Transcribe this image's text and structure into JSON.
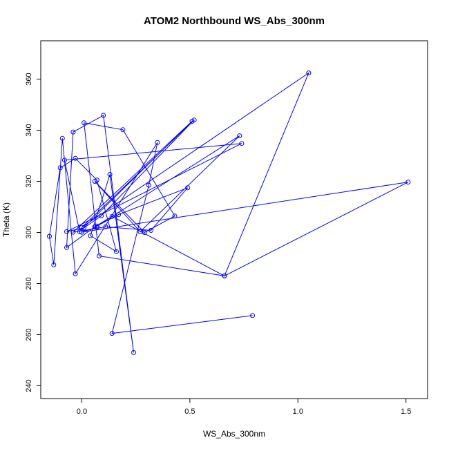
{
  "chart_data": {
    "type": "line",
    "title": "ATOM2 Northbound WS_Abs_300nm",
    "xlabel": "WS_Abs_300nm",
    "ylabel": "Theta (K)",
    "xlim": [
      -0.19,
      1.6
    ],
    "ylim": [
      235,
      375
    ],
    "x_ticks": [
      0.0,
      0.5,
      1.0,
      1.5
    ],
    "x_tick_labels": [
      "0.0",
      "0.5",
      "1.0",
      "1.5"
    ],
    "y_ticks": [
      240,
      260,
      280,
      300,
      320,
      340,
      360
    ],
    "y_tick_labels": [
      "240",
      "260",
      "280",
      "300",
      "320",
      "340",
      "360"
    ],
    "grid": false,
    "legend": "none",
    "series": [
      {
        "color": "#0000ff",
        "marker": "open-circle",
        "style": "overplotted lines and points",
        "x": [
          0.79,
          0.14,
          0.31,
          0.35,
          -0.03,
          -0.09,
          -0.13,
          -0.15,
          -0.1,
          -0.03,
          0.07,
          0.16,
          0.04,
          0.13,
          0.24,
          0.1,
          -0.04,
          -0.07,
          0.06,
          0.14,
          0.66,
          0.08,
          0.01,
          0.19,
          0.43,
          0.29,
          0.06,
          0.27,
          0.73,
          0.07,
          0.17,
          0.49,
          0.32,
          0.11,
          -0.04,
          0.51,
          -0.01,
          -0.08,
          0.74,
          -0.07,
          0.01,
          0.09,
          0.52,
          0.0,
          1.05,
          0.66,
          1.51,
          -0.0,
          0.07
        ],
        "y": [
          267.5,
          260.5,
          318.5,
          335.2,
          283.8,
          336.8,
          287.3,
          298.5,
          325.3,
          329,
          320.5,
          292.5,
          298.7,
          322.7,
          253,
          345.8,
          339.3,
          294.1,
          302.2,
          306.3,
          283,
          290.8,
          342.9,
          340.2,
          306.4,
          300,
          320,
          300.3,
          337.8,
          302.5,
          307,
          317.5,
          300.8,
          302.2,
          300.1,
          343.5,
          300.3,
          328.3,
          334.8,
          300.3,
          301.8,
          306.5,
          344,
          302,
          362.4,
          283,
          319.7,
          300.1,
          302
        ]
      }
    ]
  }
}
